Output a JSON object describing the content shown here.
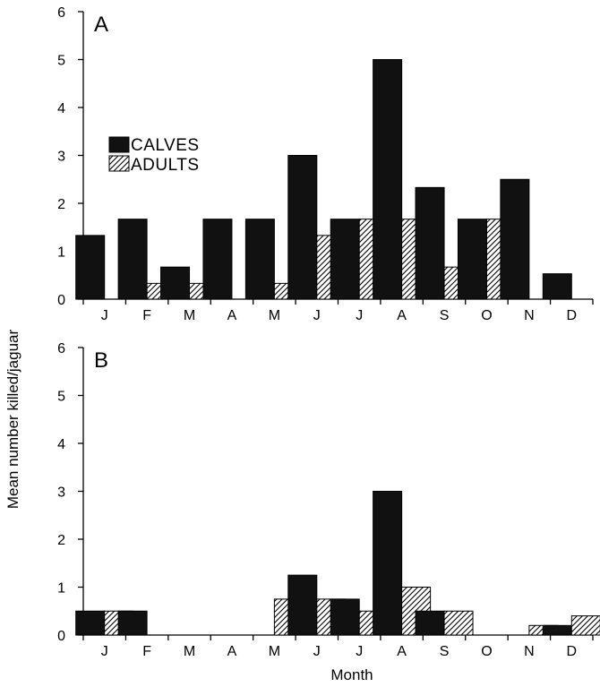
{
  "chart_data": {
    "xlabel": "Month",
    "ylabel": "Mean number killed/jaguar",
    "legend": {
      "placement": "top-left of panel A",
      "entries": [
        {
          "name": "CALVES",
          "pattern": "solid-black"
        },
        {
          "name": "ADULTS",
          "pattern": "diagonal-hatch"
        }
      ]
    },
    "colors": {
      "calves": "#111111",
      "adults_hatch": "#000000"
    },
    "panels": [
      {
        "type": "bar",
        "panel_label": "A",
        "categories": [
          "J",
          "F",
          "M",
          "A",
          "M",
          "J",
          "J",
          "A",
          "S",
          "O",
          "N",
          "D"
        ],
        "yticks": [
          "0",
          "1",
          "2",
          "3",
          "4",
          "5",
          "6"
        ],
        "ylim": [
          0,
          6
        ],
        "series": [
          {
            "name": "CALVES",
            "values": [
              1.33,
              1.67,
              0.67,
              1.67,
              1.67,
              3.0,
              1.67,
              5.0,
              2.33,
              1.67,
              2.5,
              0.53
            ]
          },
          {
            "name": "ADULTS",
            "values": [
              0,
              0.33,
              0.33,
              0,
              0.33,
              1.33,
              1.67,
              1.67,
              0.67,
              1.67,
              0,
              0
            ]
          }
        ]
      },
      {
        "type": "bar",
        "panel_label": "B",
        "categories": [
          "J",
          "F",
          "M",
          "A",
          "M",
          "J",
          "J",
          "A",
          "S",
          "O",
          "N",
          "D"
        ],
        "yticks": [
          "0",
          "1",
          "2",
          "3",
          "4",
          "5",
          "6"
        ],
        "ylim": [
          0,
          6
        ],
        "series": [
          {
            "name": "CALVES",
            "values": [
              0.5,
              0.5,
              0,
              0,
              0,
              1.25,
              0.75,
              3.0,
              0.5,
              0,
              0,
              0.2
            ]
          },
          {
            "name": "ADULTS",
            "values": [
              0.5,
              0,
              0,
              0,
              0.75,
              0.75,
              0.5,
              1.0,
              0.5,
              0,
              0.2,
              0.4
            ]
          }
        ]
      }
    ]
  }
}
